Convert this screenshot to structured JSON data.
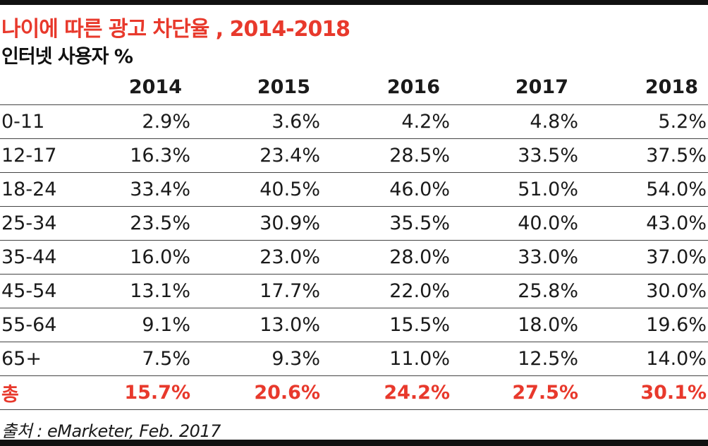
{
  "colors": {
    "accent": "#e8392c",
    "text": "#1a1a1a",
    "rule": "#111111"
  },
  "chart_data": {
    "type": "table",
    "title": "나이에 따른 광고 차단율 , 2014-2018",
    "subtitle": "인터넷 사용자 %",
    "columns": [
      "2014",
      "2015",
      "2016",
      "2017",
      "2018"
    ],
    "rows": [
      {
        "label": "0-11",
        "values": [
          "2.9%",
          "3.6%",
          "4.2%",
          "4.8%",
          "5.2%"
        ]
      },
      {
        "label": "12-17",
        "values": [
          "16.3%",
          "23.4%",
          "28.5%",
          "33.5%",
          "37.5%"
        ]
      },
      {
        "label": "18-24",
        "values": [
          "33.4%",
          "40.5%",
          "46.0%",
          "51.0%",
          "54.0%"
        ]
      },
      {
        "label": "25-34",
        "values": [
          "23.5%",
          "30.9%",
          "35.5%",
          "40.0%",
          "43.0%"
        ]
      },
      {
        "label": "35-44",
        "values": [
          "16.0%",
          "23.0%",
          "28.0%",
          "33.0%",
          "37.0%"
        ]
      },
      {
        "label": "45-54",
        "values": [
          "13.1%",
          "17.7%",
          "22.0%",
          "25.8%",
          "30.0%"
        ]
      },
      {
        "label": "55-64",
        "values": [
          "9.1%",
          "13.0%",
          "15.5%",
          "18.0%",
          "19.6%"
        ]
      },
      {
        "label": "65+",
        "values": [
          "7.5%",
          "9.3%",
          "11.0%",
          "12.5%",
          "14.0%"
        ]
      }
    ],
    "total": {
      "label": "총",
      "values": [
        "15.7%",
        "20.6%",
        "24.2%",
        "27.5%",
        "30.1%"
      ]
    },
    "source": "출처 : eMarketer, Feb. 2017"
  }
}
